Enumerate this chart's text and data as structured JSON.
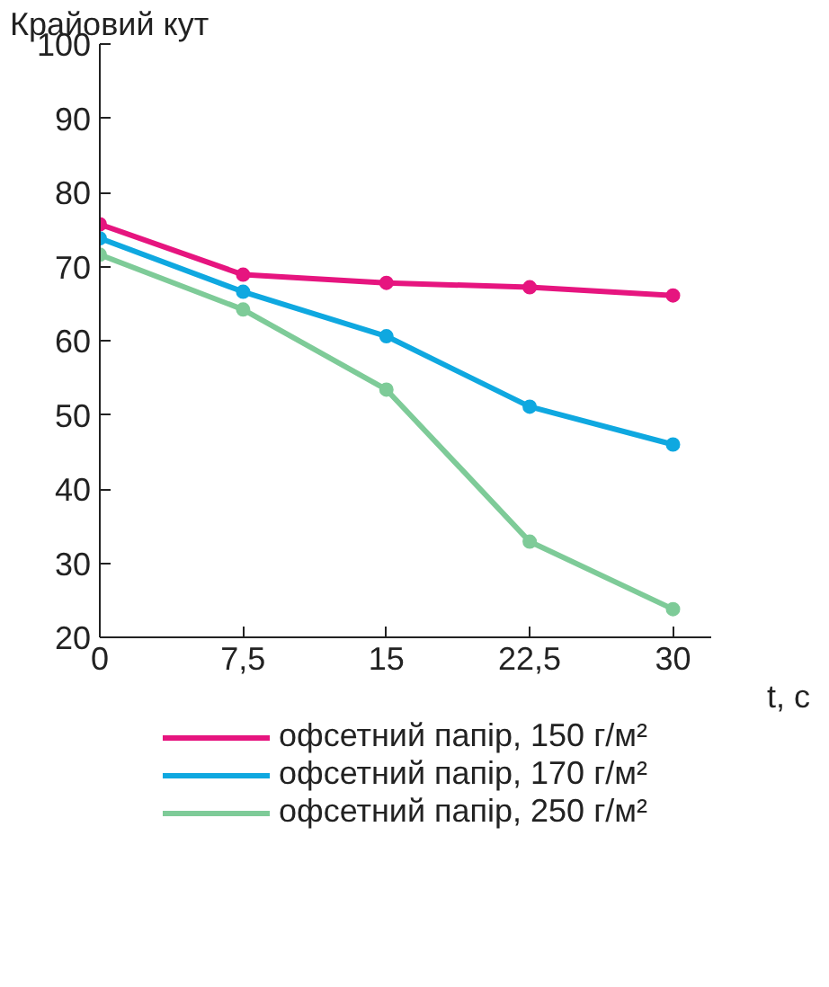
{
  "chart_data": {
    "type": "line",
    "ylabel": "Крайовий кут",
    "xlabel": "t, с",
    "x": [
      0,
      7.5,
      15,
      22.5,
      30
    ],
    "series": [
      {
        "name": "офсетний папір, 150 г/м²",
        "color": "#e6157f",
        "values": [
          75.7,
          68.9,
          67.8,
          67.2,
          66.1
        ]
      },
      {
        "name": "офсетний папір, 170 г/м²",
        "color": "#0fa8e0",
        "values": [
          73.8,
          66.6,
          60.6,
          51.1,
          46.0
        ]
      },
      {
        "name": "офсетний папір, 250 г/м²",
        "color": "#7ecb98",
        "values": [
          71.6,
          64.2,
          53.4,
          32.9,
          23.8
        ]
      }
    ],
    "xlim": [
      0,
      32
    ],
    "ylim": [
      20,
      100
    ],
    "xticks": [
      0,
      {
        "value": 7.5,
        "label": "7,5"
      },
      15,
      {
        "value": 22.5,
        "label": "22,5"
      },
      30
    ],
    "yticks": [
      20,
      30,
      40,
      50,
      60,
      70,
      80,
      90,
      100
    ],
    "grid": false,
    "legend": "bottom",
    "marker": "circle",
    "line_style": "solid"
  }
}
